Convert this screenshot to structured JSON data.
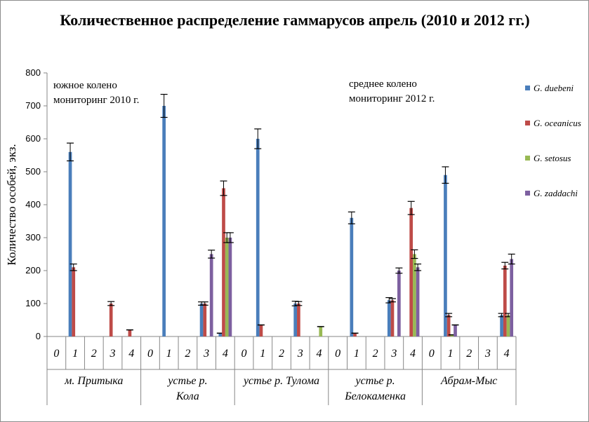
{
  "chart_data": {
    "type": "bar",
    "title": "Количественное  распределение гаммарусов апрель (2010 и 2012 гг.)",
    "ylabel": "Количество особей, экз.",
    "xlabel": "",
    "ylim": [
      0,
      800
    ],
    "yticks": [
      0,
      100,
      200,
      300,
      400,
      500,
      600,
      700,
      800
    ],
    "grid": false,
    "legend_position": "right",
    "annotations": [
      "южное колено мониторинг 2010 г.",
      "среднее колено мониторинг 2012  г."
    ],
    "sites": [
      {
        "name": "м. Притыка",
        "stations": [
          "0",
          "1",
          "2",
          "3",
          "4"
        ]
      },
      {
        "name": "устье р. Кола",
        "stations": [
          "0",
          "1",
          "2",
          "3",
          "4"
        ]
      },
      {
        "name": "устье р. Тулома",
        "stations": [
          "0",
          "1",
          "2",
          "3",
          "4"
        ]
      },
      {
        "name": "устье р. Белокаменка",
        "stations": [
          "0",
          "1",
          "2",
          "3",
          "4"
        ]
      },
      {
        "name": "Абрам-Мыс",
        "stations": [
          "0",
          "1",
          "2",
          "3",
          "4"
        ]
      }
    ],
    "series": [
      {
        "name": "G. duebeni",
        "color": "#4a7ebb",
        "values": [
          [
            0,
            560,
            0,
            0,
            0
          ],
          [
            0,
            700,
            0,
            100,
            10
          ],
          [
            0,
            600,
            0,
            100,
            0
          ],
          [
            0,
            360,
            0,
            110,
            0
          ],
          [
            0,
            490,
            0,
            0,
            65
          ]
        ],
        "errors": [
          [
            0,
            27,
            0,
            0,
            0
          ],
          [
            0,
            35,
            0,
            5,
            0
          ],
          [
            0,
            30,
            0,
            7,
            0
          ],
          [
            0,
            18,
            0,
            8,
            0
          ],
          [
            0,
            25,
            0,
            0,
            5
          ]
        ]
      },
      {
        "name": "G. oceanicus",
        "color": "#be4b48",
        "values": [
          [
            0,
            210,
            0,
            100,
            20
          ],
          [
            0,
            0,
            0,
            100,
            450
          ],
          [
            0,
            35,
            0,
            100,
            0
          ],
          [
            0,
            10,
            0,
            110,
            390
          ],
          [
            0,
            65,
            0,
            0,
            215
          ]
        ],
        "errors": [
          [
            0,
            10,
            0,
            6,
            0
          ],
          [
            0,
            0,
            0,
            5,
            22
          ],
          [
            0,
            0,
            0,
            6,
            0
          ],
          [
            0,
            0,
            0,
            5,
            20
          ],
          [
            0,
            5,
            0,
            0,
            10
          ]
        ]
      },
      {
        "name": "G. setosus",
        "color": "#98b954",
        "values": [
          [
            0,
            0,
            0,
            0,
            0
          ],
          [
            0,
            0,
            0,
            0,
            300
          ],
          [
            0,
            0,
            0,
            0,
            30
          ],
          [
            0,
            0,
            0,
            0,
            250
          ],
          [
            0,
            5,
            0,
            0,
            65
          ]
        ],
        "errors": [
          [
            0,
            0,
            0,
            0,
            0
          ],
          [
            0,
            0,
            0,
            0,
            15
          ],
          [
            0,
            0,
            0,
            0,
            0
          ],
          [
            0,
            0,
            0,
            0,
            13
          ],
          [
            0,
            0,
            0,
            0,
            5
          ]
        ]
      },
      {
        "name": "G. zaddachi",
        "color": "#7d60a0",
        "values": [
          [
            0,
            0,
            0,
            0,
            0
          ],
          [
            0,
            0,
            0,
            250,
            300
          ],
          [
            0,
            0,
            0,
            0,
            0
          ],
          [
            0,
            0,
            0,
            200,
            210
          ],
          [
            0,
            35,
            0,
            0,
            235
          ]
        ],
        "errors": [
          [
            0,
            0,
            0,
            0,
            0
          ],
          [
            0,
            0,
            0,
            12,
            15
          ],
          [
            0,
            0,
            0,
            0,
            0
          ],
          [
            0,
            0,
            0,
            8,
            10
          ],
          [
            0,
            0,
            0,
            0,
            15
          ]
        ]
      }
    ]
  }
}
